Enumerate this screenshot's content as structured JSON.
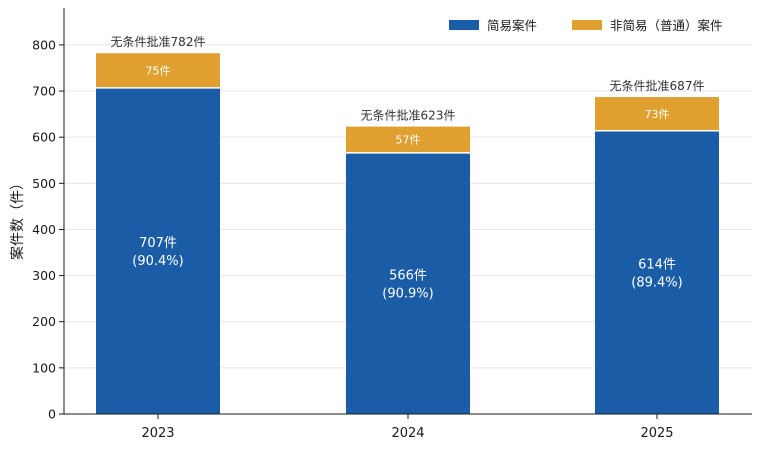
{
  "chart_data": {
    "type": "bar",
    "stacked": true,
    "categories": [
      "2023",
      "2024",
      "2025"
    ],
    "series": [
      {
        "name": "简易案件",
        "values": [
          707,
          566,
          614
        ],
        "labels": [
          {
            "count": "707件",
            "pct": "(90.4%)"
          },
          {
            "count": "566件",
            "pct": "(90.9%)"
          },
          {
            "count": "614件",
            "pct": "(89.4%)"
          }
        ],
        "color": "#1a5ca6"
      },
      {
        "name": "非简易（普通）案件",
        "values": [
          75,
          57,
          73
        ],
        "labels": [
          "75件",
          "57件",
          "73件"
        ],
        "color": "#e0a030"
      }
    ],
    "totals": [
      782,
      623,
      687
    ],
    "total_labels": [
      "无条件批准782件",
      "无条件批准623件",
      "无条件批准687件"
    ],
    "ylabel": "案件数（件）",
    "xlabel": "",
    "ylim": [
      0,
      880
    ],
    "yticks": [
      0,
      100,
      200,
      300,
      400,
      500,
      600,
      700,
      800
    ],
    "grid": "horizontal",
    "legend_position": "top-right"
  }
}
